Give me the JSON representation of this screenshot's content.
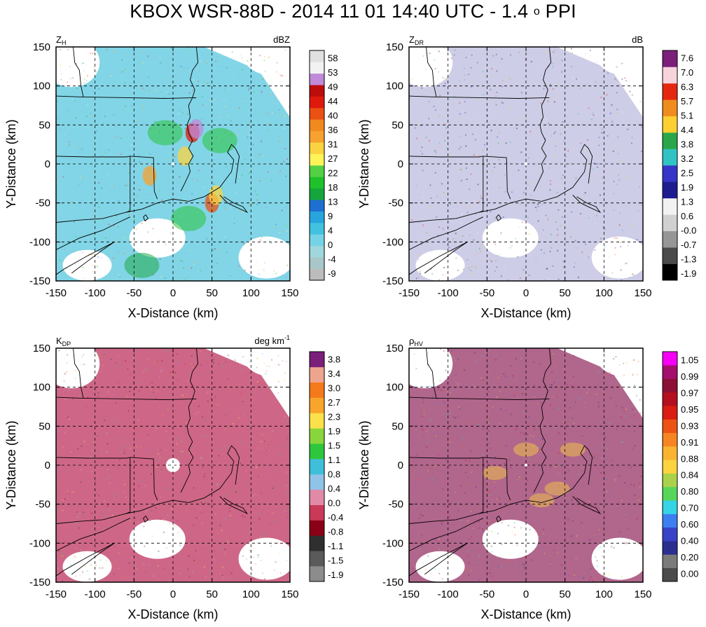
{
  "figure": {
    "title_prefix": "KBOX WSR-88D - 2014 11 01 14:40 UTC - 1.4",
    "title_degree": "o",
    "title_suffix": "PPI"
  },
  "colors": {
    "state_borders": "#000000",
    "grid": "#000000",
    "zh_scale": [
      "#bcbcbc",
      "#a8c7c9",
      "#9fd7dc",
      "#76d3e6",
      "#43c2e0",
      "#27a5dc",
      "#1d6fd1",
      "#14a63b",
      "#1fc12a",
      "#53d043",
      "#fff35a",
      "#fbd341",
      "#f6a130",
      "#f08a1e",
      "#ea5112",
      "#e0190d",
      "#bc0c0c",
      "#c08ad9",
      "#f2f2f2",
      "#e0e0e0"
    ],
    "zdr_scale": [
      "#000000",
      "#4a4a4a",
      "#969696",
      "#d0d0d0",
      "#f2f2f2",
      "#1d1d8f",
      "#3535c8",
      "#31c3c4",
      "#29a64a",
      "#fdcf33",
      "#f08c1e",
      "#e5270f",
      "#f7d3dc",
      "#7a1f7a"
    ],
    "kdp_scale": [
      "#8c8c8c",
      "#5a5a5a",
      "#2f2f2f",
      "#8a0015",
      "#ca3a58",
      "#e08aa8",
      "#91c2e8",
      "#3fbfd9",
      "#2ec63d",
      "#89d63c",
      "#fde14a",
      "#f9a42b",
      "#f47a1b",
      "#eea58f",
      "#7a1f7a"
    ],
    "rhohv_scale": [
      "#4b4b4b",
      "#7a7a7a",
      "#2a2f8f",
      "#3742c6",
      "#3d7ff0",
      "#35d4e6",
      "#57d65a",
      "#a9d24a",
      "#fbd33f",
      "#f8b431",
      "#f78422",
      "#ee5315",
      "#da1c12",
      "#b50e1e",
      "#8c0f35",
      "#a40e6c",
      "#f500f5"
    ]
  },
  "chart_data": [
    {
      "type": "heatmap",
      "panel_label_main": "Z",
      "panel_label_sub": "H",
      "units_main": "dBZ",
      "units_sup": "",
      "xlabel": "X-Distance (km)",
      "ylabel": "Y-Distance (km)",
      "xlim": [
        -150,
        150
      ],
      "ylim": [
        -150,
        150
      ],
      "xticks": [
        "-150",
        "-100",
        "-50",
        "0",
        "50",
        "100",
        "150"
      ],
      "yticks": [
        "150",
        "100",
        "50",
        "0",
        "-50",
        "-100",
        "-150"
      ],
      "grid": "dashed",
      "colorbar_labels": [
        "58",
        "53",
        "49",
        "44",
        "40",
        "36",
        "31",
        "27",
        "22",
        "18",
        "13",
        "9",
        "4",
        "0",
        "-4",
        "-9"
      ],
      "dominant_color": "#74d0e3"
    },
    {
      "type": "heatmap",
      "panel_label_main": "Z",
      "panel_label_sub": "DR",
      "units_main": "dB",
      "units_sup": "",
      "xlabel": "X-Distance (km)",
      "ylabel": "Y-Distance (km)",
      "xlim": [
        -150,
        150
      ],
      "ylim": [
        -150,
        150
      ],
      "xticks": [
        "-150",
        "-100",
        "-50",
        "0",
        "50",
        "100",
        "150"
      ],
      "yticks": [
        "150",
        "100",
        "50",
        "0",
        "-50",
        "-100",
        "-150"
      ],
      "grid": "dashed",
      "colorbar_labels": [
        "7.6",
        "7.0",
        "6.3",
        "5.7",
        "5.1",
        "4.4",
        "3.8",
        "3.2",
        "2.5",
        "1.9",
        "1.3",
        "0.6",
        "-0.0",
        "-0.7",
        "-1.3",
        "-1.9"
      ],
      "dominant_color": "#c8c8e4"
    },
    {
      "type": "heatmap",
      "panel_label_main": "K",
      "panel_label_sub": "DP",
      "units_main": "deg km",
      "units_sup": "-1",
      "xlabel": "X-Distance (km)",
      "ylabel": "Y-Distance (km)",
      "xlim": [
        -150,
        150
      ],
      "ylim": [
        -150,
        150
      ],
      "xticks": [
        "-150",
        "-100",
        "-50",
        "0",
        "50",
        "100",
        "150"
      ],
      "yticks": [
        "150",
        "100",
        "50",
        "0",
        "-50",
        "-100",
        "-150"
      ],
      "grid": "dashed",
      "colorbar_labels": [
        "3.8",
        "3.4",
        "3.0",
        "2.7",
        "2.3",
        "1.9",
        "1.5",
        "1.1",
        "0.8",
        "0.4",
        "0.0",
        "-0.4",
        "-0.8",
        "-1.1",
        "-1.5",
        "-1.9"
      ],
      "dominant_color": "#c9577a"
    },
    {
      "type": "heatmap",
      "panel_label_main": "ρ",
      "panel_label_sub": "HV",
      "units_main": "",
      "units_sup": "",
      "xlabel": "X-Distance (km)",
      "ylabel": "Y-Distance (km)",
      "xlim": [
        -150,
        150
      ],
      "ylim": [
        -150,
        150
      ],
      "xticks": [
        "-150",
        "-100",
        "-50",
        "0",
        "50",
        "100",
        "150"
      ],
      "yticks": [
        "150",
        "100",
        "50",
        "0",
        "-50",
        "-100",
        "-150"
      ],
      "grid": "dashed",
      "colorbar_labels": [
        "1.05",
        "0.99",
        "0.97",
        "0.95",
        "0.93",
        "0.91",
        "0.88",
        "0.84",
        "0.80",
        "0.70",
        "0.60",
        "0.40",
        "0.20",
        "0.00"
      ],
      "dominant_color": "#a8557f"
    }
  ]
}
